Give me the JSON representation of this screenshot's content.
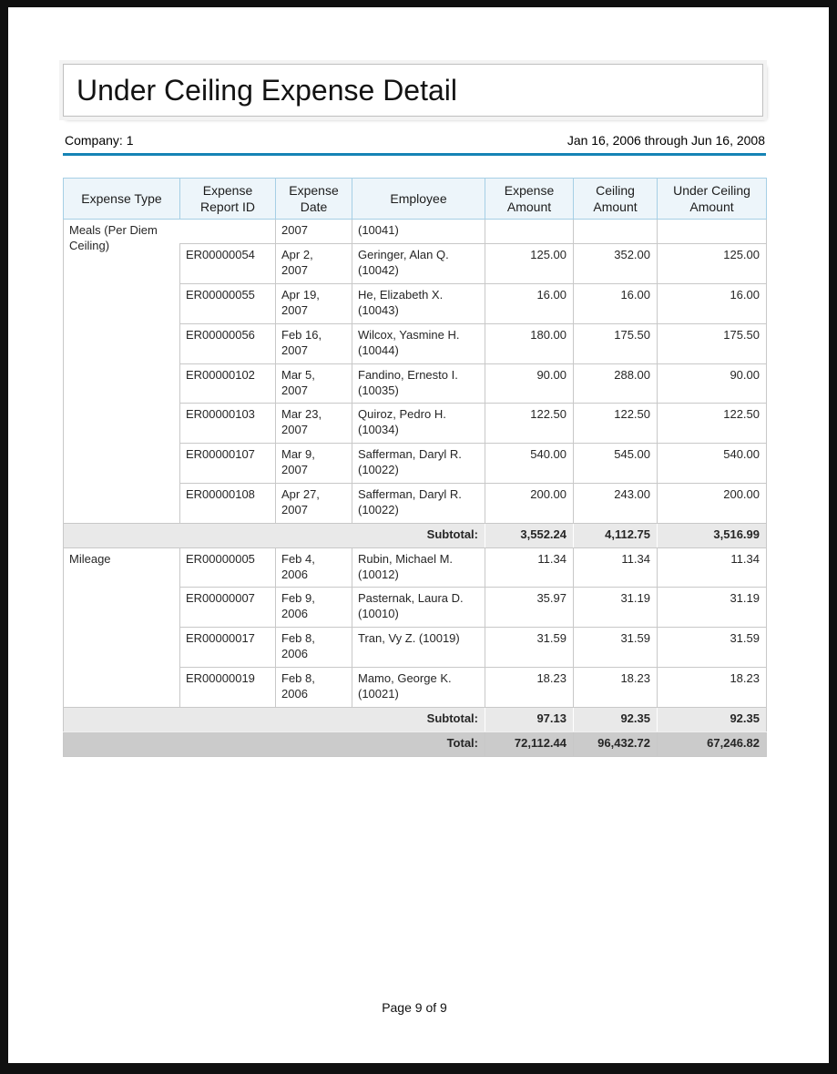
{
  "page": {
    "title": "Under Ceiling Expense Detail",
    "company": "Company: 1",
    "date_range": "Jan 16, 2006 through Jun 16, 2008",
    "footer": "Page 9 of 9"
  },
  "colors": {
    "accent_blue": "#1583B5",
    "header_bg": "#EDF5FA",
    "header_border": "#A6CFE5",
    "body_border": "#C8C8C8",
    "subtotal_bg": "#E9E9E9",
    "total_bg": "#CBCBCB",
    "frame": "#101010"
  },
  "table": {
    "columns": [
      "Expense Type",
      "Expense Report ID",
      "Expense Date",
      "Employee",
      "Expense Amount",
      "Ceiling Amount",
      "Under Ceiling Amount"
    ],
    "groups": [
      {
        "expense_type": "Meals (Per Diem Ceiling)",
        "rows": [
          {
            "continuation": true,
            "report_id": "",
            "date": "2007",
            "employee": "(10041)",
            "expense": "",
            "ceiling": "",
            "under": ""
          },
          {
            "report_id": "ER00000054",
            "date": "Apr 2,\n2007",
            "employee": "Geringer, Alan Q.\n(10042)",
            "expense": "125.00",
            "ceiling": "352.00",
            "under": "125.00"
          },
          {
            "report_id": "ER00000055",
            "date": "Apr 19,\n2007",
            "employee": "He, Elizabeth X.\n(10043)",
            "expense": "16.00",
            "ceiling": "16.00",
            "under": "16.00"
          },
          {
            "report_id": "ER00000056",
            "date": "Feb 16,\n2007",
            "employee": "Wilcox, Yasmine H.\n(10044)",
            "expense": "180.00",
            "ceiling": "175.50",
            "under": "175.50"
          },
          {
            "report_id": "ER00000102",
            "date": "Mar 5,\n2007",
            "employee": "Fandino, Ernesto I.\n(10035)",
            "expense": "90.00",
            "ceiling": "288.00",
            "under": "90.00"
          },
          {
            "report_id": "ER00000103",
            "date": "Mar 23,\n2007",
            "employee": "Quiroz, Pedro H.\n(10034)",
            "expense": "122.50",
            "ceiling": "122.50",
            "under": "122.50"
          },
          {
            "report_id": "ER00000107",
            "date": "Mar 9,\n2007",
            "employee": "Safferman, Daryl R.\n(10022)",
            "expense": "540.00",
            "ceiling": "545.00",
            "under": "540.00"
          },
          {
            "report_id": "ER00000108",
            "date": "Apr 27,\n2007",
            "employee": "Safferman, Daryl R.\n(10022)",
            "expense": "200.00",
            "ceiling": "243.00",
            "under": "200.00"
          }
        ],
        "subtotal_label": "Subtotal:",
        "subtotal": {
          "expense": "3,552.24",
          "ceiling": "4,112.75",
          "under": "3,516.99"
        }
      },
      {
        "expense_type": "Mileage",
        "rows": [
          {
            "report_id": "ER00000005",
            "date": "Feb 4,\n2006",
            "employee": "Rubin, Michael M.\n(10012)",
            "expense": "11.34",
            "ceiling": "11.34",
            "under": "11.34"
          },
          {
            "report_id": "ER00000007",
            "date": "Feb 9,\n2006",
            "employee": "Pasternak, Laura D.\n(10010)",
            "expense": "35.97",
            "ceiling": "31.19",
            "under": "31.19"
          },
          {
            "report_id": "ER00000017",
            "date": "Feb 8,\n2006",
            "employee": "Tran, Vy Z. (10019)",
            "expense": "31.59",
            "ceiling": "31.59",
            "under": "31.59"
          },
          {
            "report_id": "ER00000019",
            "date": "Feb 8,\n2006",
            "employee": "Mamo, George K.\n(10021)",
            "expense": "18.23",
            "ceiling": "18.23",
            "under": "18.23"
          }
        ],
        "subtotal_label": "Subtotal:",
        "subtotal": {
          "expense": "97.13",
          "ceiling": "92.35",
          "under": "92.35"
        }
      }
    ],
    "total_label": "Total:",
    "total": {
      "expense": "72,112.44",
      "ceiling": "96,432.72",
      "under": "67,246.82"
    }
  }
}
